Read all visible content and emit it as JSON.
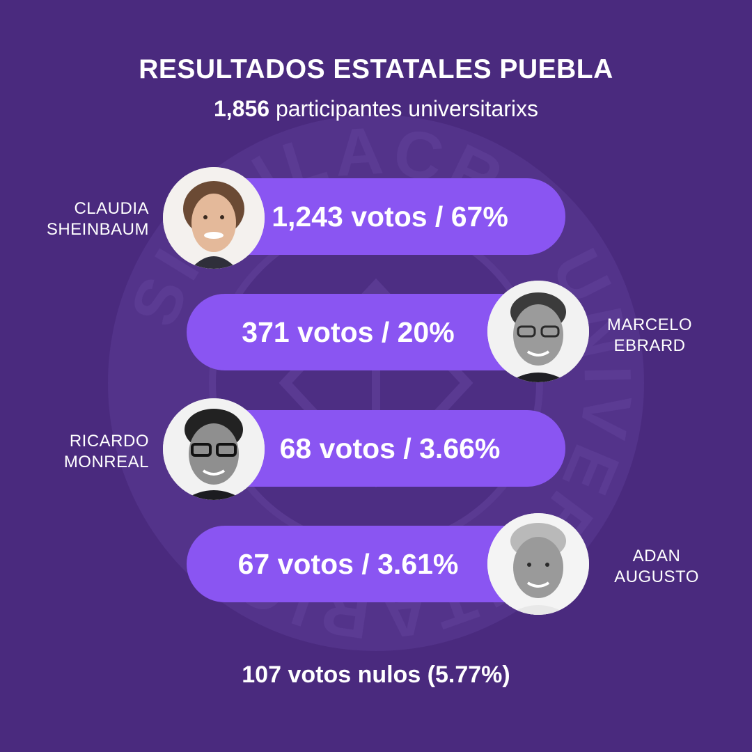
{
  "header": {
    "title": "RESULTADOS ESTATALES PUEBLA",
    "participants_count": "1,856",
    "participants_label": "participantes universitarixs"
  },
  "watermark": {
    "seal_text": "SIMULACRO UNIVERSITARIO"
  },
  "candidates": [
    {
      "name_line1": "CLAUDIA",
      "name_line2": "SHEINBAUM",
      "result": "1,243 votos / 67%",
      "votes": 1243,
      "percent": 67
    },
    {
      "name_line1": "MARCELO",
      "name_line2": "EBRARD",
      "result": "371 votos / 20%",
      "votes": 371,
      "percent": 20
    },
    {
      "name_line1": "RICARDO",
      "name_line2": "MONREAL",
      "result": "68 votos / 3.66%",
      "votes": 68,
      "percent": 3.66
    },
    {
      "name_line1": "ADAN",
      "name_line2": "AUGUSTO",
      "result": "67 votos / 3.61%",
      "votes": 67,
      "percent": 3.61
    }
  ],
  "footer": {
    "null_votes": "107 votos nulos (5.77%)"
  },
  "colors": {
    "background": "#4a2a7e",
    "bar": "#8a55f2",
    "seal": "#5a3a8c"
  }
}
